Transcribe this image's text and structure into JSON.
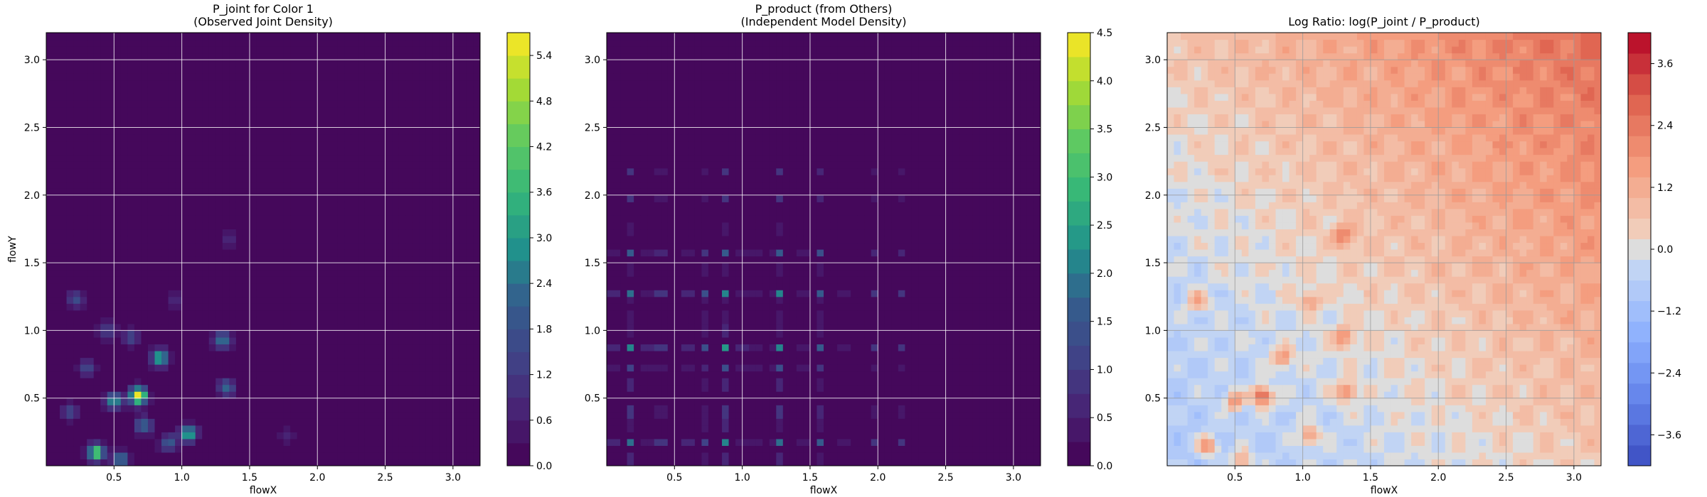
{
  "chart_data": [
    {
      "type": "heatmap",
      "title_lines": [
        "P_joint for Color 1",
        "(Observed Joint Density)"
      ],
      "xlabel": "flowX",
      "ylabel": "flowY",
      "xlim": [
        0,
        3.2
      ],
      "ylim": [
        0,
        3.2
      ],
      "x_ticks": [
        "0.5",
        "1.0",
        "1.5",
        "2.0",
        "2.5",
        "3.0"
      ],
      "y_ticks": [
        "0.5",
        "1.0",
        "1.5",
        "2.0",
        "2.5",
        "3.0"
      ],
      "colormap": "viridis",
      "colorbar": {
        "range": [
          0,
          5.7
        ],
        "ticks": [
          "0.0",
          "0.6",
          "1.2",
          "1.8",
          "2.4",
          "3.0",
          "3.6",
          "4.2",
          "4.8",
          "5.4"
        ]
      },
      "grid": true,
      "background_value": 0,
      "hotspots": [
        {
          "x": 0.68,
          "y": 0.52,
          "value": 5.6
        },
        {
          "x": 0.37,
          "y": 0.1,
          "value": 4.3
        },
        {
          "x": 0.84,
          "y": 0.8,
          "value": 3.5
        },
        {
          "x": 1.05,
          "y": 0.24,
          "value": 3.4
        },
        {
          "x": 0.5,
          "y": 0.48,
          "value": 2.9
        },
        {
          "x": 1.3,
          "y": 0.93,
          "value": 2.7
        },
        {
          "x": 0.55,
          "y": 0.05,
          "value": 2.7
        },
        {
          "x": 1.33,
          "y": 0.58,
          "value": 2.3
        },
        {
          "x": 0.72,
          "y": 0.3,
          "value": 2.4
        },
        {
          "x": 0.9,
          "y": 0.17,
          "value": 2.1
        },
        {
          "x": 0.22,
          "y": 1.23,
          "value": 1.7
        },
        {
          "x": 0.45,
          "y": 1.0,
          "value": 1.5
        },
        {
          "x": 0.62,
          "y": 0.95,
          "value": 1.5
        },
        {
          "x": 0.17,
          "y": 0.4,
          "value": 1.7
        },
        {
          "x": 1.35,
          "y": 1.68,
          "value": 1.0
        },
        {
          "x": 0.95,
          "y": 1.22,
          "value": 1.0
        },
        {
          "x": 1.78,
          "y": 0.23,
          "value": 0.7
        },
        {
          "x": 0.3,
          "y": 0.72,
          "value": 1.5
        }
      ]
    },
    {
      "type": "heatmap",
      "title_lines": [
        "P_product (from Others)",
        "(Independent Model Density)"
      ],
      "xlabel": "flowX",
      "ylabel": "",
      "xlim": [
        0,
        3.2
      ],
      "ylim": [
        0,
        3.2
      ],
      "x_ticks": [
        "0.5",
        "1.0",
        "1.5",
        "2.0",
        "2.5",
        "3.0"
      ],
      "y_ticks": [
        "0.5",
        "1.0",
        "1.5",
        "2.0",
        "2.5",
        "3.0"
      ],
      "colormap": "viridis",
      "colorbar": {
        "range": [
          0,
          4.5
        ],
        "ticks": [
          "0.0",
          "0.5",
          "1.0",
          "1.5",
          "2.0",
          "2.5",
          "3.0",
          "3.5",
          "4.0",
          "4.5"
        ]
      },
      "grid": true,
      "background_value": 0,
      "marginal_peaks": [
        {
          "pos": 1.26,
          "value": 2.1
        },
        {
          "pos": 0.87,
          "value": 1.6
        },
        {
          "pos": 0.4,
          "value": 1.5
        },
        {
          "pos": 0.17,
          "value": 1.4
        },
        {
          "pos": 1.57,
          "value": 1.2
        },
        {
          "pos": 0.05,
          "value": 1.1
        },
        {
          "pos": 0.6,
          "value": 1.1
        },
        {
          "pos": 0.3,
          "value": 0.9
        },
        {
          "pos": 0.73,
          "value": 0.9
        },
        {
          "pos": 1.0,
          "value": 0.9
        },
        {
          "pos": 1.1,
          "value": 0.8
        },
        {
          "pos": 1.45,
          "value": 0.8
        },
        {
          "pos": 1.97,
          "value": 0.6
        },
        {
          "pos": 2.17,
          "value": 0.6
        },
        {
          "pos": 1.75,
          "value": 0.5
        }
      ]
    },
    {
      "type": "heatmap",
      "title_lines": [
        "Log Ratio: log(P_joint / P_product)"
      ],
      "xlabel": "flowX",
      "ylabel": "",
      "xlim": [
        0,
        3.2
      ],
      "ylim": [
        0,
        3.2
      ],
      "x_ticks": [
        "0.5",
        "1.0",
        "1.5",
        "2.0",
        "2.5",
        "3.0"
      ],
      "y_ticks": [
        "0.5",
        "1.0",
        "1.5",
        "2.0",
        "2.5",
        "3.0"
      ],
      "colormap": "coolwarm",
      "colorbar": {
        "range": [
          -4.2,
          4.2
        ],
        "ticks": [
          "−3.6",
          "−2.4",
          "−1.2",
          "0.0",
          "1.2",
          "2.4",
          "3.6"
        ]
      },
      "grid": true,
      "trend": {
        "low_corner": -1.0,
        "high_corner": 3.6,
        "note": "values rise toward high flowX and high flowY"
      },
      "hotspots": [
        {
          "x": 0.7,
          "y": 0.52,
          "value": 3.4
        },
        {
          "x": 1.3,
          "y": 1.7,
          "value": 2.4
        },
        {
          "x": 1.32,
          "y": 0.55,
          "value": 2.3
        },
        {
          "x": 1.3,
          "y": 0.95,
          "value": 2.2
        },
        {
          "x": 0.3,
          "y": 0.15,
          "value": 2.0
        },
        {
          "x": 0.85,
          "y": 0.8,
          "value": 1.9
        },
        {
          "x": 1.05,
          "y": 0.22,
          "value": 1.8
        },
        {
          "x": 0.5,
          "y": 0.48,
          "value": 2.0
        },
        {
          "x": 0.22,
          "y": 1.22,
          "value": 1.6
        },
        {
          "x": 1.05,
          "y": 1.22,
          "value": 1.6
        },
        {
          "x": 0.55,
          "y": 0.05,
          "value": 1.7
        }
      ]
    }
  ]
}
